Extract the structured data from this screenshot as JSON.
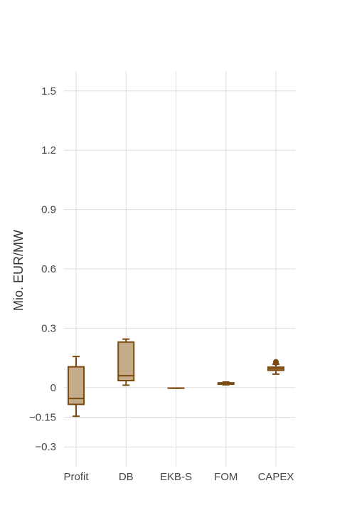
{
  "chart_data": {
    "type": "box",
    "title": "",
    "xlabel": "",
    "ylabel": "Mio. EUR/MW",
    "ylim": [
      -0.4,
      1.6
    ],
    "yticks": [
      -0.3,
      -0.15,
      0,
      0.3,
      0.6,
      0.9,
      1.2,
      1.5
    ],
    "ytick_labels": [
      "−0.3",
      "−0.15",
      "0",
      "0.3",
      "0.6",
      "0.9",
      "1.2",
      "1.5"
    ],
    "grid": true,
    "colors": {
      "box_line": "#7a4a10",
      "box_fill": "#c4ab8a",
      "grid": "#dddddd"
    },
    "categories": [
      "Profit",
      "DB",
      "EKB-S",
      "FOM",
      "CAPEX"
    ],
    "boxes": [
      {
        "name": "Profit",
        "whisker_low": -0.145,
        "q1": -0.085,
        "median": -0.055,
        "q3": 0.105,
        "whisker_high": 0.157,
        "outliers": []
      },
      {
        "name": "DB",
        "whisker_low": 0.012,
        "q1": 0.035,
        "median": 0.06,
        "q3": 0.23,
        "whisker_high": 0.245,
        "outliers": []
      },
      {
        "name": "EKB-S",
        "whisker_low": -0.003,
        "q1": -0.003,
        "median": -0.003,
        "q3": -0.003,
        "whisker_high": -0.003,
        "outliers": []
      },
      {
        "name": "FOM",
        "whisker_low": 0.014,
        "q1": 0.017,
        "median": 0.02,
        "q3": 0.024,
        "whisker_high": 0.028,
        "outliers": []
      },
      {
        "name": "CAPEX",
        "whisker_low": 0.068,
        "q1": 0.087,
        "median": 0.095,
        "q3": 0.103,
        "whisker_high": 0.118,
        "outliers": [
          0.13,
          0.125
        ]
      }
    ]
  }
}
